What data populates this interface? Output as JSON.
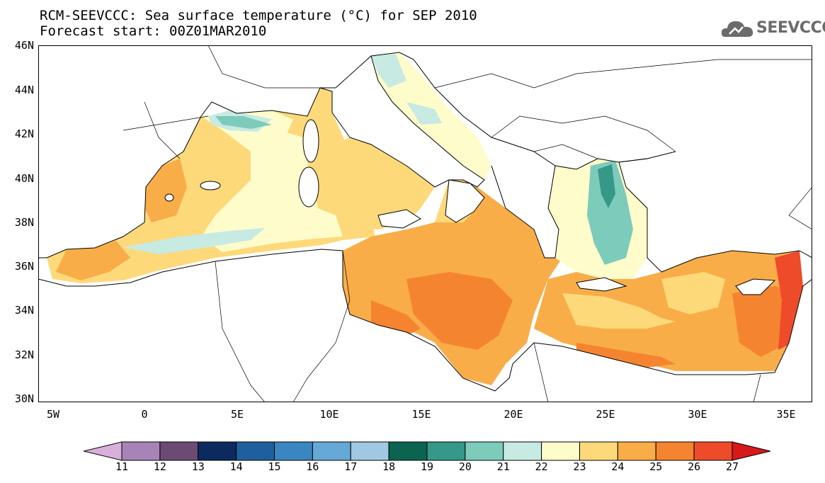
{
  "header": {
    "title_line1": "RCM-SEEVCCC: Sea surface temperature (°C) for SEP 2010",
    "title_line2": "Forecast start: 00Z01MAR2010"
  },
  "logo": {
    "text": "SEEVCCC",
    "icon": "cloud-logo-icon"
  },
  "map": {
    "lat_labels": [
      "46N",
      "44N",
      "42N",
      "40N",
      "38N",
      "36N",
      "34N",
      "32N",
      "30N"
    ],
    "lon_labels": [
      "5W",
      "0",
      "5E",
      "10E",
      "15E",
      "20E",
      "25E",
      "30E",
      "35E"
    ],
    "land_color": "#ffffff",
    "coast_color": "#000000"
  },
  "colorbar": {
    "labels": [
      "11",
      "12",
      "13",
      "14",
      "15",
      "16",
      "17",
      "18",
      "19",
      "20",
      "21",
      "22",
      "23",
      "24",
      "25",
      "26",
      "27"
    ],
    "colors": [
      "#d9b0d9",
      "#a883b8",
      "#6b4a73",
      "#0d2a5e",
      "#1f5f9e",
      "#3a86c0",
      "#66a8d6",
      "#a0c8e2",
      "#0b6350",
      "#369888",
      "#7ccbbb",
      "#c7eae3",
      "#fffccb",
      "#fdd97a",
      "#f8ad49",
      "#f58431",
      "#ee4b2b",
      "#d7191c"
    ]
  }
}
